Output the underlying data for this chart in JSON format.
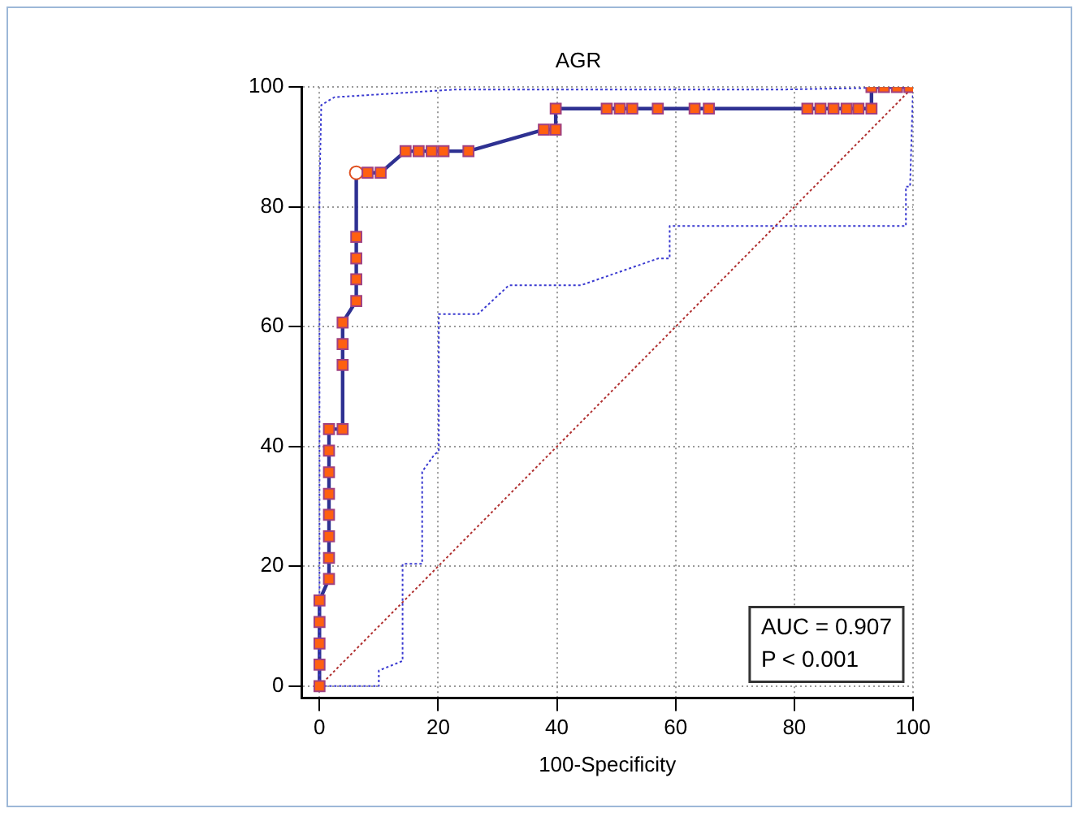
{
  "chart_data": {
    "type": "line",
    "title": "AGR",
    "xlabel": "100-Specificity",
    "xlim": [
      -3,
      100
    ],
    "ylim": [
      -2,
      100
    ],
    "xticks": [
      0,
      20,
      40,
      60,
      80,
      100
    ],
    "yticks": [
      0,
      20,
      40,
      60,
      80,
      100
    ],
    "grid": true,
    "legend": false,
    "annotations": [
      "AUC = 0.907",
      "P < 0.001"
    ],
    "series": [
      {
        "color": "#3a3ad0",
        "line_style": "dotted",
        "marker": "none",
        "x": [
          0,
          0,
          0.3,
          2.5,
          23,
          78.6,
          100
        ],
        "values": [
          0,
          83,
          97,
          98.3,
          99.6,
          99.6,
          100
        ]
      },
      {
        "color": "#3a3ad0",
        "line_style": "dotted",
        "marker": "none",
        "x": [
          0,
          10,
          10,
          14,
          14,
          17.3,
          17.3,
          19.4,
          20.1,
          20.1,
          26.7,
          31.9,
          44,
          57.1,
          59,
          59,
          98.8,
          98.8,
          99.5,
          100
        ],
        "values": [
          0,
          0,
          2.6,
          4.2,
          20.4,
          20.4,
          35.8,
          38.7,
          39.2,
          62.1,
          62.1,
          66.9,
          66.9,
          71.4,
          71.4,
          76.8,
          76.8,
          83.4,
          83.4,
          100
        ]
      },
      {
        "color": "#b03030",
        "line_style": "dotted",
        "marker": "none",
        "x": [
          0,
          100
        ],
        "values": [
          0,
          100
        ]
      },
      {
        "color": "#2e3192",
        "line_style": "solid",
        "marker": "none",
        "x": [
          0,
          0,
          0,
          0,
          0,
          1.6,
          1.6,
          1.6,
          1.6,
          1.6,
          1.6,
          1.6,
          1.6,
          3.9,
          3.9,
          3.9,
          3.9,
          6.2,
          6.2,
          6.2,
          6.2,
          6.2,
          8.1,
          10.3,
          14.5,
          16.7,
          18.9,
          20.9,
          25.1,
          37.8,
          39.8,
          39.8,
          48.4,
          50.6,
          52.7,
          57,
          63.2,
          65.6,
          82.2,
          84.4,
          86.6,
          88.8,
          90.8,
          93,
          93,
          95.1,
          97.3,
          99.4
        ],
        "values": [
          0,
          3.6,
          7.1,
          10.7,
          14.3,
          17.9,
          21.4,
          25,
          28.6,
          32.1,
          35.7,
          39.3,
          42.9,
          42.9,
          53.6,
          57.1,
          60.7,
          64.3,
          67.9,
          71.4,
          75,
          85.7,
          85.7,
          85.7,
          89.3,
          89.3,
          89.3,
          89.3,
          89.3,
          92.9,
          92.9,
          96.4,
          96.4,
          96.4,
          96.4,
          96.4,
          96.4,
          96.4,
          96.4,
          96.4,
          96.4,
          96.4,
          96.4,
          96.4,
          100,
          100,
          100,
          100
        ]
      },
      {
        "type": "scatter",
        "color": "#ff6010",
        "marker": "square",
        "x": [
          0,
          0,
          0,
          0,
          0,
          1.6,
          1.6,
          1.6,
          1.6,
          1.6,
          1.6,
          1.6,
          1.6,
          3.9,
          3.9,
          3.9,
          3.9,
          6.2,
          6.2,
          6.2,
          6.2,
          8.1,
          10.3,
          14.5,
          16.7,
          18.9,
          20.9,
          25.1,
          37.8,
          39.8,
          39.8,
          48.4,
          50.6,
          52.7,
          57,
          63.2,
          65.6,
          82.2,
          84.4,
          86.6,
          88.8,
          90.8,
          93,
          93,
          95.1,
          97.3,
          99.4
        ],
        "values": [
          0,
          3.6,
          7.1,
          10.7,
          14.3,
          17.9,
          21.4,
          25,
          28.6,
          32.1,
          35.7,
          39.3,
          42.9,
          42.9,
          53.6,
          57.1,
          60.7,
          64.3,
          67.9,
          71.4,
          75,
          85.7,
          85.7,
          89.3,
          89.3,
          89.3,
          89.3,
          89.3,
          92.9,
          92.9,
          96.4,
          96.4,
          96.4,
          96.4,
          96.4,
          96.4,
          96.4,
          96.4,
          96.4,
          96.4,
          96.4,
          96.4,
          96.4,
          100,
          100,
          100,
          100
        ]
      },
      {
        "type": "scatter",
        "color": "#ffffff",
        "marker": "circle",
        "x": [
          6.2
        ],
        "values": [
          85.7
        ]
      }
    ]
  }
}
